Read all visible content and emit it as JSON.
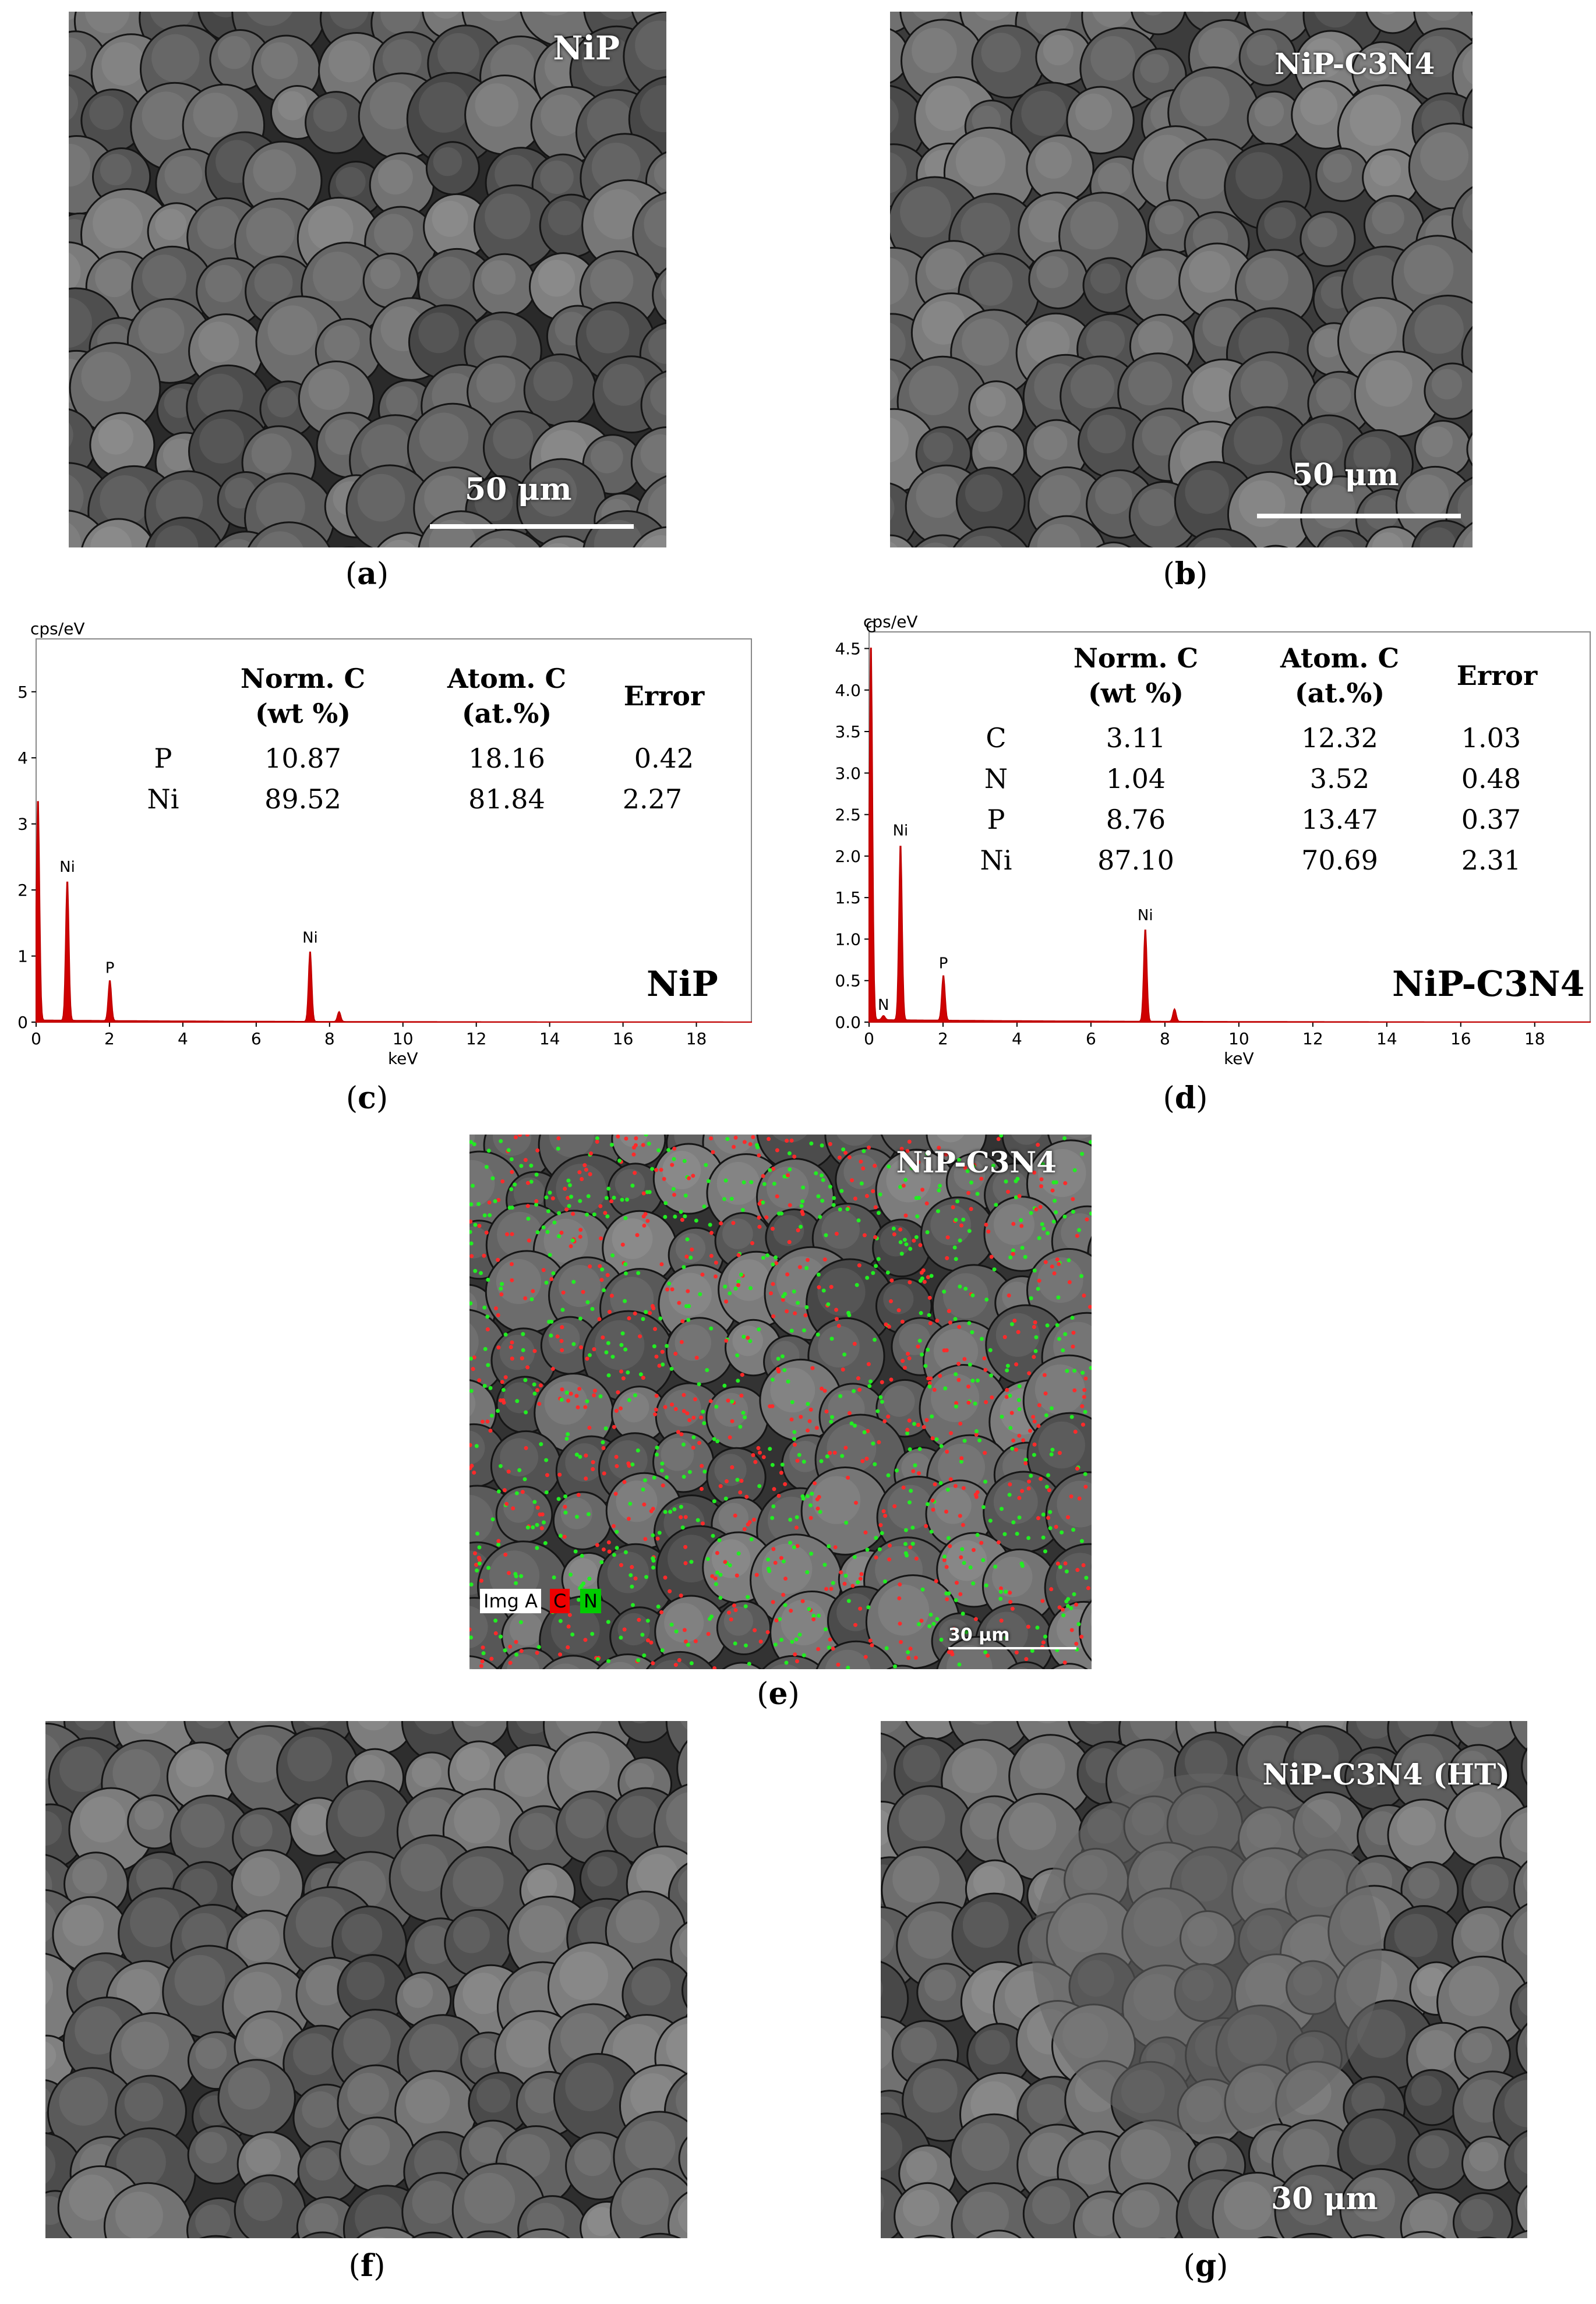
{
  "panels": {
    "a": {
      "caption": "a",
      "label": "NiP",
      "scale": "50 μm"
    },
    "b": {
      "caption": "b",
      "label": "NiP-C3N4",
      "scale": "50 μm"
    },
    "c": {
      "caption": "c",
      "name": "NiP",
      "y_unit": "cps/eV",
      "x_unit": "keV"
    },
    "d": {
      "caption": "d",
      "name": "NiP-C3N4",
      "y_unit": "cps/eV",
      "x_unit": "keV"
    },
    "e": {
      "caption": "e",
      "label": "NiP-C3N4",
      "legend_img": "Img A",
      "legend_c": "C",
      "legend_n": "N",
      "scale": "30 μm"
    },
    "f": {
      "caption": "f"
    },
    "g": {
      "caption": "g",
      "label": "NiP-C3N4 (HT)",
      "scale": "30 μm"
    }
  },
  "table_headers": {
    "norm": "Norm. C",
    "norm_unit": "(wt %)",
    "atom": "Atom. C",
    "atom_unit": "(at.%)",
    "error": "Error"
  },
  "chart_data": [
    {
      "type": "line",
      "panel": "c",
      "ylabel": "cps/eV",
      "xlabel": "keV",
      "xlim": [
        0,
        19.5
      ],
      "ylim": [
        0,
        5.8
      ],
      "xticks": [
        "0",
        "2",
        "4",
        "6",
        "8",
        "10",
        "12",
        "14",
        "16",
        "18"
      ],
      "yticks": [
        "0",
        "1",
        "2",
        "3",
        "4",
        "5"
      ],
      "peaks": [
        {
          "label": "Ni",
          "x": 0.85,
          "y": 2.15
        },
        {
          "label": "P",
          "x": 2.01,
          "y": 0.62
        },
        {
          "label": "Ni",
          "x": 7.47,
          "y": 1.08
        },
        {
          "label": "",
          "x": 8.26,
          "y": 0.15
        },
        {
          "label": "",
          "x": 0.05,
          "y": 3.4
        }
      ],
      "table": [
        {
          "element": "P",
          "norm": "10.87",
          "atom": "18.16",
          "error": "0.42"
        },
        {
          "element": "Ni",
          "norm": "89.52",
          "atom": "81.84",
          "error": "2.27"
        }
      ]
    },
    {
      "type": "line",
      "panel": "d",
      "ylabel": "cps/eV",
      "xlabel": "keV",
      "xlim": [
        0,
        19.5
      ],
      "ylim": [
        0,
        4.7
      ],
      "xticks": [
        "0",
        "2",
        "4",
        "6",
        "8",
        "10",
        "12",
        "14",
        "16",
        "18"
      ],
      "yticks": [
        "0.0",
        "0.5",
        "1.0",
        "1.5",
        "2.0",
        "2.5",
        "3.0",
        "3.5",
        "4.0",
        "4.5"
      ],
      "peaks": [
        {
          "label": "C",
          "x": 0.05,
          "y": 4.6
        },
        {
          "label": "N",
          "x": 0.39,
          "y": 0.05
        },
        {
          "label": "Ni",
          "x": 0.85,
          "y": 2.15
        },
        {
          "label": "P",
          "x": 2.01,
          "y": 0.55
        },
        {
          "label": "Ni",
          "x": 7.47,
          "y": 1.13
        },
        {
          "label": "",
          "x": 8.26,
          "y": 0.15
        }
      ],
      "table": [
        {
          "element": "C",
          "norm": "3.11",
          "atom": "12.32",
          "error": "1.03"
        },
        {
          "element": "N",
          "norm": "1.04",
          "atom": "3.52",
          "error": "0.48"
        },
        {
          "element": "P",
          "norm": "8.76",
          "atom": "13.47",
          "error": "0.37"
        },
        {
          "element": "Ni",
          "norm": "87.10",
          "atom": "70.69",
          "error": "2.31"
        }
      ]
    }
  ]
}
